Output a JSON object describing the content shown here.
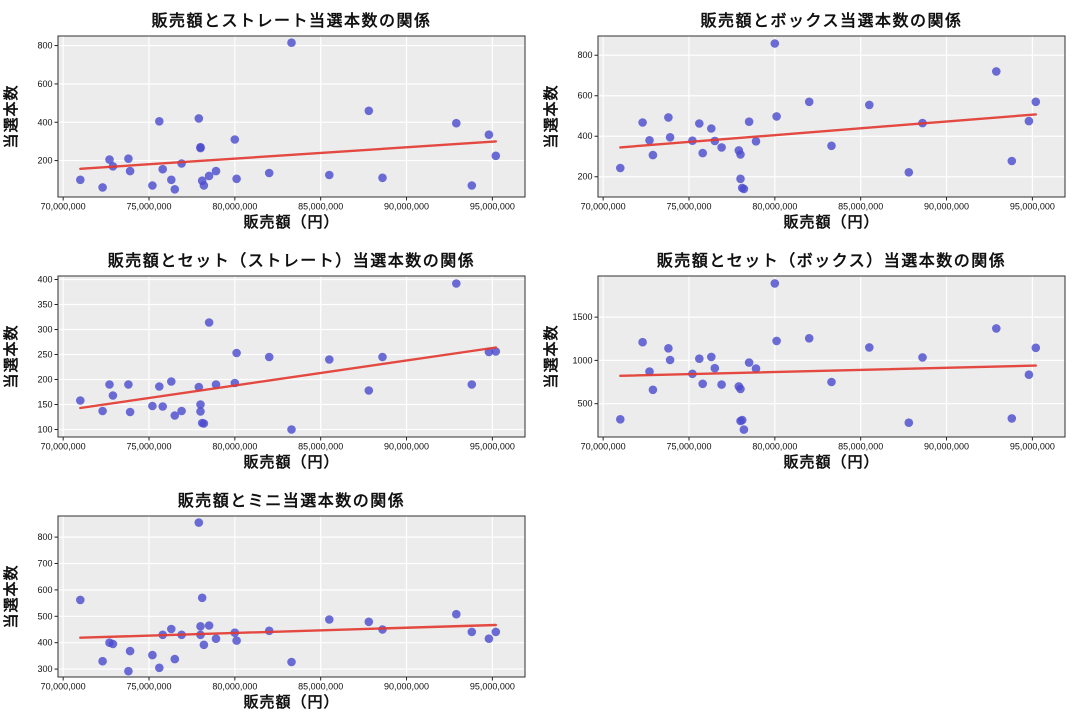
{
  "page": {
    "background": "#ffffff"
  },
  "style": {
    "plot_bg": "#ececec",
    "grid_color": "#ffffff",
    "spine_color": "#2f2f2f",
    "tick_color": "#222222",
    "text_color": "#111111",
    "point_color": "#4a4ad0",
    "point_opacity": 0.8,
    "point_radius": 4.3,
    "line_color": "#e23b32",
    "line_width": 2.4
  },
  "chart_data": [
    {
      "type": "scatter",
      "title": "販売額とストレート当選本数の関係",
      "xlabel": "販売額（円）",
      "ylabel": "当選本数",
      "xlim": [
        69700000,
        96900000
      ],
      "ylim": [
        10,
        850
      ],
      "x_ticks": [
        70000000,
        75000000,
        80000000,
        85000000,
        90000000,
        95000000
      ],
      "x_tick_labels": [
        "70,000,000",
        "75,000,000",
        "80,000,000",
        "85,000,000",
        "90,000,000",
        "95,000,000"
      ],
      "y_ticks": [
        200,
        400,
        600,
        800
      ],
      "x": [
        71000000,
        72300000,
        72700000,
        72900000,
        73800000,
        73900000,
        75200000,
        75600000,
        75800000,
        76300000,
        76500000,
        76900000,
        77900000,
        78000000,
        78000000,
        78100000,
        78200000,
        78500000,
        78900000,
        80000000,
        80100000,
        82000000,
        83300000,
        85500000,
        87800000,
        88600000,
        92900000,
        93800000,
        94800000,
        95200000
      ],
      "y": [
        100,
        60,
        205,
        170,
        210,
        145,
        70,
        405,
        155,
        100,
        50,
        185,
        420,
        265,
        270,
        95,
        70,
        120,
        145,
        310,
        105,
        135,
        815,
        125,
        460,
        110,
        395,
        70,
        335,
        225
      ],
      "regression_line": {
        "x": [
          71000000,
          95200000
        ],
        "y": [
          157,
          300
        ]
      }
    },
    {
      "type": "scatter",
      "title": "販売額とボックス当選本数の関係",
      "xlabel": "販売額（円）",
      "ylabel": "当選本数",
      "xlim": [
        69700000,
        96900000
      ],
      "ylim": [
        100,
        895
      ],
      "x_ticks": [
        70000000,
        75000000,
        80000000,
        85000000,
        90000000,
        95000000
      ],
      "x_tick_labels": [
        "70,000,000",
        "75,000,000",
        "80,000,000",
        "85,000,000",
        "90,000,000",
        "95,000,000"
      ],
      "y_ticks": [
        200,
        400,
        600,
        800
      ],
      "x": [
        71000000,
        72300000,
        72700000,
        72900000,
        73800000,
        73900000,
        75200000,
        75600000,
        75800000,
        76300000,
        76500000,
        76900000,
        77900000,
        78000000,
        78000000,
        78100000,
        78200000,
        78500000,
        78900000,
        80000000,
        80100000,
        82000000,
        83300000,
        85500000,
        87800000,
        88600000,
        92900000,
        93800000,
        94800000,
        95200000
      ],
      "y": [
        243,
        468,
        380,
        307,
        493,
        395,
        378,
        463,
        317,
        438,
        377,
        345,
        330,
        310,
        190,
        145,
        140,
        472,
        375,
        858,
        498,
        570,
        353,
        555,
        222,
        465,
        720,
        278,
        475,
        570
      ],
      "regression_line": {
        "x": [
          71000000,
          95200000
        ],
        "y": [
          345,
          508
        ]
      }
    },
    {
      "type": "scatter",
      "title": "販売額とセット（ストレート）当選本数の関係",
      "xlabel": "販売額（円）",
      "ylabel": "当選本数",
      "xlim": [
        69700000,
        96900000
      ],
      "ylim": [
        85,
        407
      ],
      "x_ticks": [
        70000000,
        75000000,
        80000000,
        85000000,
        90000000,
        95000000
      ],
      "x_tick_labels": [
        "70,000,000",
        "75,000,000",
        "80,000,000",
        "85,000,000",
        "90,000,000",
        "95,000,000"
      ],
      "y_ticks": [
        100,
        150,
        200,
        250,
        300,
        350,
        400
      ],
      "x": [
        71000000,
        72300000,
        72700000,
        72900000,
        73800000,
        73900000,
        75200000,
        75600000,
        75800000,
        76300000,
        76500000,
        76900000,
        77900000,
        78000000,
        78000000,
        78100000,
        78200000,
        78500000,
        78900000,
        80000000,
        80100000,
        82000000,
        83300000,
        85500000,
        87800000,
        88600000,
        92900000,
        93800000,
        94800000,
        95200000
      ],
      "y": [
        158,
        137,
        190,
        168,
        190,
        135,
        147,
        186,
        146,
        196,
        128,
        137,
        185,
        150,
        136,
        113,
        112,
        314,
        190,
        193,
        253,
        245,
        100,
        240,
        178,
        245,
        392,
        190,
        255,
        256
      ],
      "regression_line": {
        "x": [
          71000000,
          95200000
        ],
        "y": [
          143,
          264
        ]
      }
    },
    {
      "type": "scatter",
      "title": "販売額とセット（ボックス）当選本数の関係",
      "xlabel": "販売額（円）",
      "ylabel": "当選本数",
      "xlim": [
        69700000,
        96900000
      ],
      "ylim": [
        115,
        1975
      ],
      "x_ticks": [
        70000000,
        75000000,
        80000000,
        85000000,
        90000000,
        95000000
      ],
      "x_tick_labels": [
        "70,000,000",
        "75,000,000",
        "80,000,000",
        "85,000,000",
        "90,000,000",
        "95,000,000"
      ],
      "y_ticks": [
        500,
        1000,
        1500
      ],
      "x": [
        71000000,
        72300000,
        72700000,
        72900000,
        73800000,
        73900000,
        75200000,
        75600000,
        75800000,
        76300000,
        76500000,
        76900000,
        77900000,
        78000000,
        78000000,
        78100000,
        78200000,
        78500000,
        78900000,
        80000000,
        80100000,
        82000000,
        83300000,
        85500000,
        87800000,
        88600000,
        92900000,
        93800000,
        94800000,
        95200000
      ],
      "y": [
        320,
        1210,
        870,
        660,
        1140,
        1005,
        845,
        1020,
        730,
        1040,
        910,
        720,
        700,
        670,
        300,
        310,
        200,
        975,
        905,
        1890,
        1225,
        1255,
        750,
        1150,
        280,
        1035,
        1370,
        330,
        835,
        1145
      ],
      "regression_line": {
        "x": [
          71000000,
          95200000
        ],
        "y": [
          822,
          940
        ]
      }
    },
    {
      "type": "scatter",
      "title": "販売額とミニ当選本数の関係",
      "xlabel": "販売額（円）",
      "ylabel": "当選本数",
      "xlim": [
        69700000,
        96900000
      ],
      "ylim": [
        270,
        880
      ],
      "x_ticks": [
        70000000,
        75000000,
        80000000,
        85000000,
        90000000,
        95000000
      ],
      "x_tick_labels": [
        "70,000,000",
        "75,000,000",
        "80,000,000",
        "85,000,000",
        "90,000,000",
        "95,000,000"
      ],
      "y_ticks": [
        300,
        400,
        500,
        600,
        700,
        800
      ],
      "x": [
        71000000,
        72300000,
        72700000,
        72900000,
        73800000,
        73900000,
        75200000,
        75600000,
        75800000,
        76300000,
        76500000,
        76900000,
        77900000,
        78000000,
        78000000,
        78100000,
        78200000,
        78500000,
        78900000,
        80000000,
        80100000,
        82000000,
        83300000,
        85500000,
        87800000,
        88600000,
        92900000,
        93800000,
        94800000,
        95200000
      ],
      "y": [
        562,
        330,
        400,
        395,
        292,
        368,
        353,
        305,
        430,
        452,
        338,
        430,
        855,
        430,
        462,
        570,
        392,
        465,
        415,
        438,
        408,
        445,
        327,
        488,
        479,
        450,
        508,
        441,
        415,
        441
      ],
      "regression_line": {
        "x": [
          71000000,
          95200000
        ],
        "y": [
          419,
          467
        ]
      }
    }
  ]
}
